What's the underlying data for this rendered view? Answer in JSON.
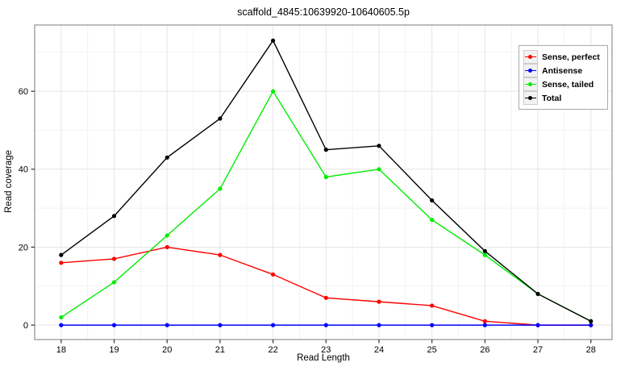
{
  "title": "scaffold_4845:10639920-10640605.5p",
  "chart_data": {
    "type": "line",
    "title": "scaffold_4845:10639920-10640605.5p",
    "xlabel": "Read Length",
    "ylabel": "Read coverage",
    "x": [
      18,
      19,
      20,
      21,
      22,
      23,
      24,
      25,
      26,
      27,
      28
    ],
    "series": [
      {
        "name": "Sense, perfect",
        "color": "#ff0000",
        "values": [
          16,
          17,
          20,
          18,
          13,
          7,
          6,
          5,
          1,
          0,
          0
        ]
      },
      {
        "name": "Antisense",
        "color": "#0000ff",
        "values": [
          0,
          0,
          0,
          0,
          0,
          0,
          0,
          0,
          0,
          0,
          0
        ]
      },
      {
        "name": "Sense, tailed",
        "color": "#00ee00",
        "values": [
          2,
          11,
          23,
          35,
          60,
          38,
          40,
          27,
          18,
          8,
          1
        ]
      },
      {
        "name": "Total",
        "color": "#000000",
        "values": [
          18,
          28,
          43,
          53,
          73,
          45,
          46,
          32,
          19,
          8,
          1
        ]
      }
    ],
    "x_ticks": [
      18,
      19,
      20,
      21,
      22,
      23,
      24,
      25,
      26,
      27,
      28
    ],
    "y_ticks": [
      0,
      20,
      40,
      60
    ],
    "x_minor": [
      18.5,
      19.5,
      20.5,
      21.5,
      22.5,
      23.5,
      24.5,
      25.5,
      26.5,
      27.5
    ],
    "y_minor": [
      10,
      30,
      50,
      70
    ],
    "x_range": [
      17.5,
      28.4
    ],
    "y_range": [
      -3.7,
      77
    ],
    "grid": true,
    "legend_position": "top-right",
    "colors": {
      "panel_border": "#999999",
      "grid_major": "#e5e5e5",
      "grid_minor": "#f2f2f2",
      "tick": "#333333",
      "tick_label": "#000000"
    }
  }
}
